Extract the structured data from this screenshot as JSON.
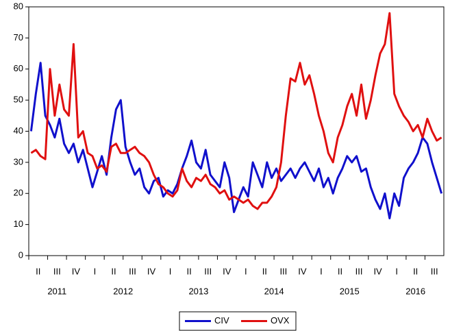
{
  "chart_data": {
    "type": "line",
    "categories": [
      "II",
      null,
      null,
      null,
      "III",
      null,
      null,
      null,
      "IV",
      null,
      null,
      null,
      "I",
      null,
      null,
      null,
      "II",
      null,
      null,
      null,
      "III",
      null,
      null,
      null,
      "IV",
      null,
      null,
      null,
      "I",
      null,
      null,
      null,
      "II",
      null,
      null,
      null,
      "III",
      null,
      null,
      null,
      "IV",
      null,
      null,
      null,
      "I",
      null,
      null,
      null,
      "II",
      null,
      null,
      null,
      "III",
      null,
      null,
      null,
      "IV",
      null,
      null,
      null,
      "I",
      null,
      null,
      null,
      "II",
      null,
      null,
      null,
      "III",
      null,
      null,
      null,
      "IV",
      null,
      null,
      null,
      "I",
      null,
      null,
      null,
      "II",
      null,
      null,
      null,
      "III",
      null,
      null,
      null
    ],
    "years": [
      "2011",
      "2012",
      "2013",
      "2014",
      "2015",
      "2016"
    ],
    "series": [
      {
        "name": "CIV",
        "color": "#1010cc",
        "values": [
          40,
          52,
          62,
          45,
          42,
          38,
          44,
          36,
          33,
          36,
          30,
          34,
          28,
          22,
          27,
          32,
          26,
          38,
          47,
          50,
          35,
          30,
          26,
          28,
          22,
          20,
          24,
          25,
          19,
          21,
          20,
          23,
          28,
          32,
          37,
          30,
          28,
          34,
          26,
          24,
          22,
          30,
          25,
          14,
          18,
          22,
          19,
          30,
          26,
          22,
          30,
          25,
          28,
          24,
          26,
          28,
          25,
          28,
          30,
          27,
          24,
          28,
          22,
          25,
          20,
          25,
          28,
          32,
          30,
          32,
          27,
          28,
          22,
          18,
          15,
          20,
          12,
          20,
          16,
          25,
          28,
          30,
          33,
          38,
          36,
          30,
          25,
          20
        ]
      },
      {
        "name": "OVX",
        "color": "#e01010",
        "values": [
          33,
          34,
          32,
          31,
          60,
          45,
          55,
          47,
          45,
          68,
          38,
          40,
          33,
          32,
          28,
          29,
          27,
          35,
          36,
          33,
          33,
          34,
          35,
          33,
          32,
          30,
          26,
          23,
          22,
          20,
          19,
          21,
          28,
          24,
          22,
          25,
          24,
          26,
          23,
          22,
          20,
          21,
          18,
          19,
          18,
          17,
          18,
          16,
          15,
          17,
          17,
          19,
          22,
          30,
          45,
          57,
          56,
          62,
          55,
          58,
          52,
          45,
          40,
          33,
          30,
          38,
          42,
          48,
          52,
          45,
          55,
          44,
          50,
          58,
          65,
          68,
          78,
          52,
          48,
          45,
          43,
          40,
          42,
          38,
          44,
          40,
          37,
          38
        ]
      }
    ],
    "ylim": [
      0,
      80
    ],
    "yticks": [
      0,
      10,
      20,
      30,
      40,
      50,
      60,
      70,
      80
    ],
    "grid": false,
    "legend": "bottom"
  }
}
